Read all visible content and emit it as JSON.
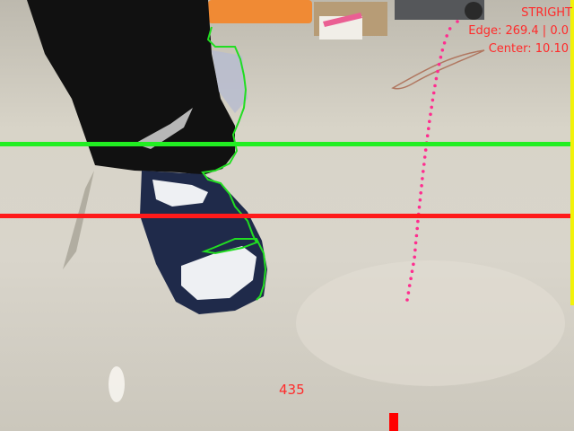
{
  "overlay": {
    "mode_label": "STRIGHT",
    "edge_readout": "Edge: 269.4 | 0.0",
    "center_readout": "Center: 10.10",
    "frame_value": "435"
  },
  "colors": {
    "reference_line_upper": "#22ee22",
    "reference_line_lower": "#ff1a1a",
    "boundary_line": "#f2f20a",
    "path_dots": "#ff2d8f",
    "contour": "#22dd22",
    "hud_text": "#ff2a2a"
  },
  "trajectory": {
    "dot_count": 40
  }
}
